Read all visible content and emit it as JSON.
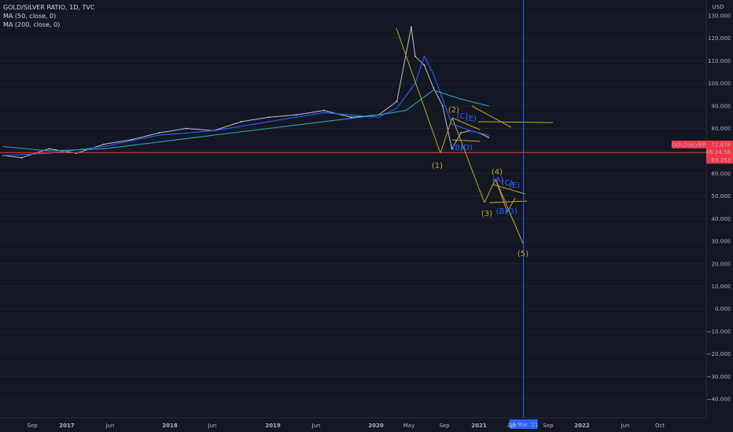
{
  "header": {
    "symbol_title": "GOLD/SILVER RATIO, 1D, TVC",
    "indicators": [
      "MA (50, close, 0)",
      "MA (200, close, 0)"
    ]
  },
  "price_axis": {
    "currency": "USD",
    "ticks": [
      130,
      120,
      110,
      100,
      90,
      80,
      70,
      60,
      50,
      40,
      30,
      20,
      10,
      0,
      -10,
      -20,
      -30,
      -40
    ],
    "tick_labels": [
      "130.000",
      "120.000",
      "110.000",
      "100.000",
      "90.000",
      "80.000",
      "70.000",
      "60.000",
      "50.000",
      "40.000",
      "30.000",
      "20.000",
      "10.000",
      "0.000",
      "−10.000",
      "−20.000",
      "−30.000",
      "−40.000"
    ],
    "symbol_tag": "GOLDSILVER",
    "last_price": "72.878",
    "countdown": "06:24:58",
    "line_price_label": "69.263",
    "line_price": 69.263,
    "colors": {
      "price_tag": "#f23645",
      "horizontal_line": "#f23645"
    }
  },
  "time_axis": {
    "labels": [
      "Sep",
      "2017",
      "Jun",
      "2018",
      "Jun",
      "2019",
      "Jun",
      "2020",
      "May",
      "Sep",
      "2021",
      "Apr",
      "Sep",
      "2022",
      "Jun",
      "Oct"
    ],
    "bold": [
      false,
      true,
      false,
      true,
      false,
      true,
      false,
      true,
      false,
      false,
      true,
      false,
      false,
      true,
      false,
      false
    ],
    "cursor_label": "26 Mar '21"
  },
  "chart_data": {
    "type": "line",
    "title": "GOLD/SILVER RATIO, 1D, TVC",
    "ylim": [
      -42,
      133
    ],
    "series": [
      {
        "name": "GOLD/SILVER RATIO",
        "x": [
          "2016-07",
          "2016-09",
          "2016-12",
          "2017-03",
          "2017-06",
          "2017-09",
          "2017-12",
          "2018-03",
          "2018-06",
          "2018-09",
          "2018-12",
          "2019-03",
          "2019-06",
          "2019-09",
          "2019-12",
          "2020-02",
          "2020-03-18",
          "2020-04",
          "2020-05",
          "2020-06",
          "2020-07",
          "2020-08",
          "2020-09",
          "2020-10",
          "2020-11",
          "2020-12"
        ],
        "values": [
          68,
          67,
          71,
          69,
          73,
          75,
          78,
          80,
          79,
          83,
          85,
          86,
          88,
          85,
          86,
          92,
          125,
          112,
          108,
          98,
          90,
          71,
          78,
          79,
          78,
          76
        ]
      },
      {
        "name": "MA (50, close, 0)",
        "x": [
          "2016-07",
          "2016-12",
          "2017-06",
          "2017-12",
          "2018-06",
          "2018-12",
          "2019-06",
          "2019-12",
          "2020-02",
          "2020-04",
          "2020-05",
          "2020-06",
          "2020-08",
          "2020-10",
          "2020-12"
        ],
        "values": [
          68,
          69,
          72,
          77,
          79,
          83,
          87,
          85,
          89,
          100,
          112,
          104,
          82,
          79,
          77
        ]
      },
      {
        "name": "MA (200, close, 0)",
        "x": [
          "2016-07",
          "2016-12",
          "2017-06",
          "2017-12",
          "2018-06",
          "2018-12",
          "2019-06",
          "2019-12",
          "2020-03",
          "2020-06",
          "2020-09",
          "2020-12"
        ],
        "values": [
          72,
          70,
          71,
          74,
          77,
          80,
          83,
          86,
          88,
          97,
          93,
          90
        ]
      }
    ],
    "horizontal_line": 69.263,
    "cursor_date": "26 Mar '21",
    "annotations": [
      {
        "label": "(1)",
        "x": "2020-08",
        "y": 62
      },
      {
        "label": "(2)",
        "x": "2020-09",
        "y": 88
      },
      {
        "label": "(3)",
        "x": "2021-01",
        "y": 44
      },
      {
        "label": "(4)",
        "x": "2021-02",
        "y": 60
      },
      {
        "label": "(5)",
        "x": "2021-05",
        "y": 25
      },
      {
        "label": "(A)",
        "x": "2021-02",
        "y": 56
      },
      {
        "label": "(B)",
        "x": "2021-02",
        "y": 43
      },
      {
        "label": "(C)",
        "x": "2021-03",
        "y": 55
      },
      {
        "label": "(D)",
        "x": "2021-03",
        "y": 43
      },
      {
        "label": "(E)",
        "x": "2021-04",
        "y": 53
      },
      {
        "label": "(B)",
        "x": "2020-09",
        "y": 70
      },
      {
        "label": "(C)",
        "x": "2020-10",
        "y": 84
      },
      {
        "label": "(D)",
        "x": "2020-10",
        "y": 70
      },
      {
        "label": "(E)",
        "x": "2020-10",
        "y": 83
      }
    ],
    "colors": {
      "price": "#d1d4dc",
      "ma50": "#2962ff",
      "ma200": "#26a0b8",
      "wave": "#c9a227",
      "wave_label_blue": "#2962ff",
      "cursor": "#2962ff"
    }
  }
}
